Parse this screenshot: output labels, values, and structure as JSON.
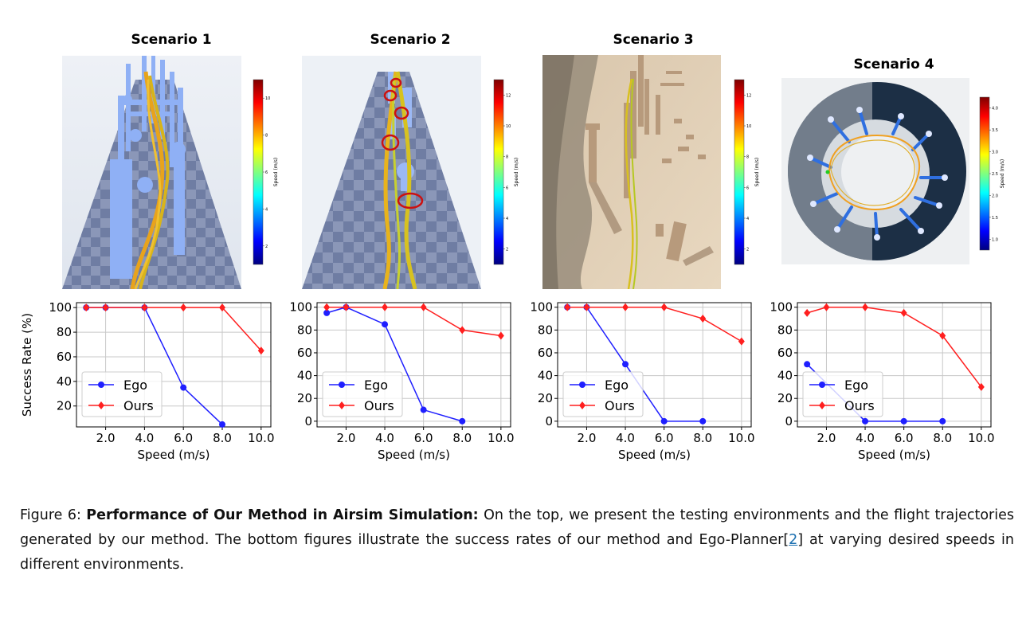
{
  "scenarios": [
    {
      "title": "Scenario 1",
      "cbar_max": 10,
      "cbar_ticks": [
        "10",
        "8",
        "6",
        "4",
        "2"
      ],
      "cbar_label": "Speed (m/s)"
    },
    {
      "title": "Scenario 2",
      "cbar_max": 12,
      "cbar_ticks": [
        "12",
        "10",
        "8",
        "6",
        "4",
        "2"
      ],
      "cbar_label": "Speed (m/s)"
    },
    {
      "title": "Scenario 3",
      "cbar_max": 12,
      "cbar_ticks": [
        "12",
        "10",
        "8",
        "6",
        "4",
        "2"
      ],
      "cbar_label": "Speed (m/s)"
    },
    {
      "title": "Scenario 4",
      "cbar_max": 4.0,
      "cbar_ticks": [
        "4.0",
        "3.5",
        "3.0",
        "2.5",
        "2.0",
        "1.5",
        "1.0"
      ],
      "cbar_label": "Speed (m/s)"
    }
  ],
  "colors": {
    "ego": "#1f1fff",
    "ours": "#ff1f1f"
  },
  "chart_data": [
    {
      "type": "line",
      "ylabel": "Success Rate (%)",
      "xlabel": "Speed (m/s)",
      "xticks": [
        "2.0",
        "4.0",
        "6.0",
        "8.0",
        "10.0"
      ],
      "yticks": [
        "20",
        "40",
        "60",
        "80",
        "100"
      ],
      "ylim": [
        3,
        104
      ],
      "xlim": [
        0.5,
        10.5
      ],
      "legend": "lower-left",
      "grid": true,
      "series": [
        {
          "name": "Ego",
          "x": [
            1,
            2,
            4,
            6,
            8
          ],
          "values": [
            100,
            100,
            100,
            35,
            5
          ]
        },
        {
          "name": "Ours",
          "x": [
            1,
            2,
            4,
            6,
            8,
            10
          ],
          "values": [
            100,
            100,
            100,
            100,
            100,
            65
          ]
        }
      ]
    },
    {
      "type": "line",
      "ylabel": "",
      "xlabel": "Speed (m/s)",
      "xticks": [
        "2.0",
        "4.0",
        "6.0",
        "8.0",
        "10.0"
      ],
      "yticks": [
        "0",
        "20",
        "40",
        "60",
        "80",
        "100"
      ],
      "ylim": [
        -5,
        104
      ],
      "xlim": [
        0.5,
        10.5
      ],
      "legend": "lower-left",
      "grid": true,
      "series": [
        {
          "name": "Ego",
          "x": [
            1,
            2,
            4,
            6,
            8
          ],
          "values": [
            95,
            100,
            85,
            10,
            0
          ]
        },
        {
          "name": "Ours",
          "x": [
            1,
            2,
            4,
            6,
            8,
            10
          ],
          "values": [
            100,
            100,
            100,
            100,
            80,
            75
          ]
        }
      ]
    },
    {
      "type": "line",
      "ylabel": "",
      "xlabel": "Speed (m/s)",
      "xticks": [
        "2.0",
        "4.0",
        "6.0",
        "8.0",
        "10.0"
      ],
      "yticks": [
        "0",
        "20",
        "40",
        "60",
        "80",
        "100"
      ],
      "ylim": [
        -5,
        104
      ],
      "xlim": [
        0.5,
        10.5
      ],
      "legend": "lower-left",
      "grid": true,
      "series": [
        {
          "name": "Ego",
          "x": [
            1,
            2,
            4,
            6,
            8
          ],
          "values": [
            100,
            100,
            50,
            0,
            0
          ]
        },
        {
          "name": "Ours",
          "x": [
            1,
            2,
            4,
            6,
            8,
            10
          ],
          "values": [
            100,
            100,
            100,
            100,
            90,
            70
          ]
        }
      ]
    },
    {
      "type": "line",
      "ylabel": "",
      "xlabel": "Speed (m/s)",
      "xticks": [
        "2.0",
        "4.0",
        "6.0",
        "8.0",
        "10.0"
      ],
      "yticks": [
        "0",
        "20",
        "40",
        "60",
        "80",
        "100"
      ],
      "ylim": [
        -5,
        104
      ],
      "xlim": [
        0.5,
        10.5
      ],
      "legend": "lower-left",
      "grid": true,
      "series": [
        {
          "name": "Ego",
          "x": [
            1,
            4,
            6,
            8
          ],
          "values": [
            50,
            0,
            0,
            0
          ]
        },
        {
          "name": "Ours",
          "x": [
            1,
            2,
            4,
            6,
            8,
            10
          ],
          "values": [
            95,
            100,
            100,
            95,
            75,
            30
          ]
        }
      ]
    }
  ],
  "caption": {
    "prefix": "Figure 6: ",
    "bold": "Performance of Our Method in Airsim Simulation:",
    "text1": " On the top, we present the testing environments and the flight trajectories generated by our method. The bottom figures illustrate the success rates of our method and Ego-Planner[",
    "ref": "2",
    "text2": "] at varying desired speeds in different environments."
  }
}
